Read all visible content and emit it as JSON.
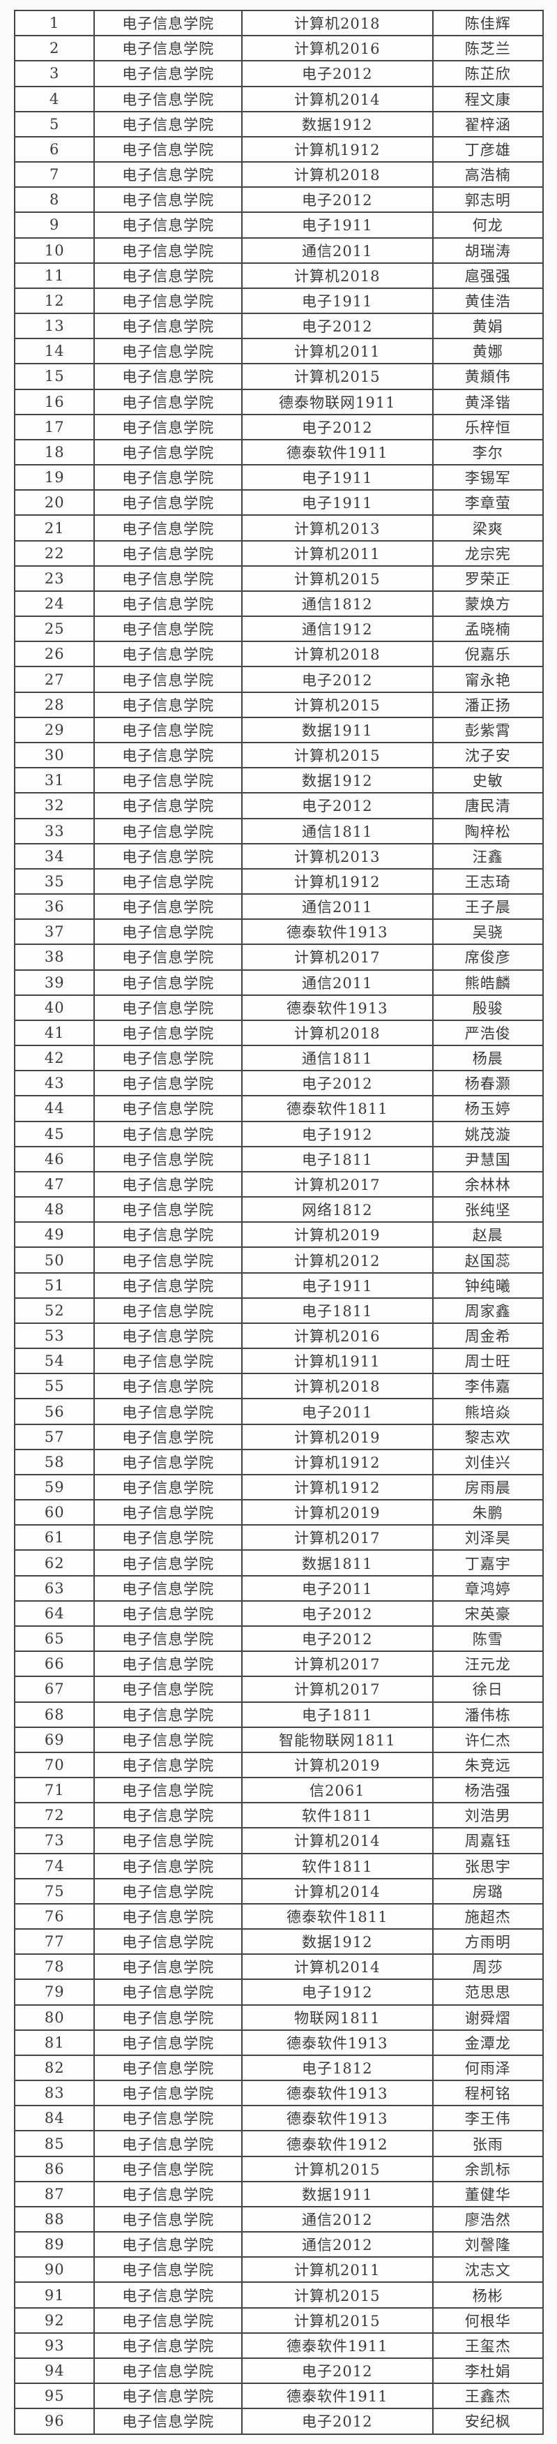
{
  "colors": {
    "border": "#454545",
    "text": "#3a3a3a",
    "background": "#fbfbfb",
    "cell_background": "#fdfdfd"
  },
  "table": {
    "rows": [
      [
        "1",
        "电子信息学院",
        "计算机2018",
        "陈佳辉"
      ],
      [
        "2",
        "电子信息学院",
        "计算机2016",
        "陈芝兰"
      ],
      [
        "3",
        "电子信息学院",
        "电子2012",
        "陈芷欣"
      ],
      [
        "4",
        "电子信息学院",
        "计算机2014",
        "程文康"
      ],
      [
        "5",
        "电子信息学院",
        "数据1912",
        "翟梓涵"
      ],
      [
        "6",
        "电子信息学院",
        "计算机1912",
        "丁彦雄"
      ],
      [
        "7",
        "电子信息学院",
        "计算机2018",
        "高浩楠"
      ],
      [
        "8",
        "电子信息学院",
        "电子2012",
        "郭志明"
      ],
      [
        "9",
        "电子信息学院",
        "电子1911",
        "何龙"
      ],
      [
        "10",
        "电子信息学院",
        "通信2011",
        "胡瑞涛"
      ],
      [
        "11",
        "电子信息学院",
        "计算机2018",
        "扈强强"
      ],
      [
        "12",
        "电子信息学院",
        "电子1911",
        "黄佳浩"
      ],
      [
        "13",
        "电子信息学院",
        "电子2012",
        "黄娟"
      ],
      [
        "14",
        "电子信息学院",
        "计算机2011",
        "黄娜"
      ],
      [
        "15",
        "电子信息学院",
        "计算机2015",
        "黄頫伟"
      ],
      [
        "16",
        "电子信息学院",
        "德泰物联网1911",
        "黄泽锴"
      ],
      [
        "17",
        "电子信息学院",
        "电子2012",
        "乐梓恒"
      ],
      [
        "18",
        "电子信息学院",
        "德泰软件1911",
        "李尔"
      ],
      [
        "19",
        "电子信息学院",
        "电子1911",
        "李锡军"
      ],
      [
        "20",
        "电子信息学院",
        "电子1911",
        "李章萤"
      ],
      [
        "21",
        "电子信息学院",
        "计算机2013",
        "梁爽"
      ],
      [
        "22",
        "电子信息学院",
        "计算机2011",
        "龙宗宪"
      ],
      [
        "23",
        "电子信息学院",
        "计算机2015",
        "罗荣正"
      ],
      [
        "24",
        "电子信息学院",
        "通信1812",
        "蒙焕方"
      ],
      [
        "25",
        "电子信息学院",
        "通信1912",
        "孟晓楠"
      ],
      [
        "26",
        "电子信息学院",
        "计算机2018",
        "倪嘉乐"
      ],
      [
        "27",
        "电子信息学院",
        "电子2012",
        "甯永艳"
      ],
      [
        "28",
        "电子信息学院",
        "计算机2015",
        "潘正扬"
      ],
      [
        "29",
        "电子信息学院",
        "数据1911",
        "彭紫霄"
      ],
      [
        "30",
        "电子信息学院",
        "计算机2015",
        "沈子安"
      ],
      [
        "31",
        "电子信息学院",
        "数据1912",
        "史敏"
      ],
      [
        "32",
        "电子信息学院",
        "电子2012",
        "唐民清"
      ],
      [
        "33",
        "电子信息学院",
        "通信1811",
        "陶梓松"
      ],
      [
        "34",
        "电子信息学院",
        "计算机2013",
        "汪鑫"
      ],
      [
        "35",
        "电子信息学院",
        "计算机1912",
        "王志琦"
      ],
      [
        "36",
        "电子信息学院",
        "通信2011",
        "王子晨"
      ],
      [
        "37",
        "电子信息学院",
        "德泰软件1913",
        "吴骁"
      ],
      [
        "38",
        "电子信息学院",
        "计算机2017",
        "席俊彦"
      ],
      [
        "39",
        "电子信息学院",
        "通信2011",
        "熊皓麟"
      ],
      [
        "40",
        "电子信息学院",
        "德泰软件1913",
        "殷骏"
      ],
      [
        "41",
        "电子信息学院",
        "计算机2018",
        "严浩俊"
      ],
      [
        "42",
        "电子信息学院",
        "通信1811",
        "杨晨"
      ],
      [
        "43",
        "电子信息学院",
        "电子2012",
        "杨春灏"
      ],
      [
        "44",
        "电子信息学院",
        "德泰软件1811",
        "杨玉婷"
      ],
      [
        "45",
        "电子信息学院",
        "电子1912",
        "姚茂漩"
      ],
      [
        "46",
        "电子信息学院",
        "电子1811",
        "尹慧国"
      ],
      [
        "47",
        "电子信息学院",
        "计算机2017",
        "余林林"
      ],
      [
        "48",
        "电子信息学院",
        "网络1812",
        "张纯坚"
      ],
      [
        "49",
        "电子信息学院",
        "计算机2019",
        "赵晨"
      ],
      [
        "50",
        "电子信息学院",
        "计算机2012",
        "赵国蕊"
      ],
      [
        "51",
        "电子信息学院",
        "电子1911",
        "钟纯曦"
      ],
      [
        "52",
        "电子信息学院",
        "电子1811",
        "周家鑫"
      ],
      [
        "53",
        "电子信息学院",
        "计算机2016",
        "周金希"
      ],
      [
        "54",
        "电子信息学院",
        "计算机1911",
        "周士旺"
      ],
      [
        "55",
        "电子信息学院",
        "计算机2018",
        "李伟嘉"
      ],
      [
        "56",
        "电子信息学院",
        "电子2011",
        "熊培焱"
      ],
      [
        "57",
        "电子信息学院",
        "计算机2019",
        "黎志欢"
      ],
      [
        "58",
        "电子信息学院",
        "计算机1912",
        "刘佳兴"
      ],
      [
        "59",
        "电子信息学院",
        "计算机1912",
        "房雨晨"
      ],
      [
        "60",
        "电子信息学院",
        "计算机2019",
        "朱鹏"
      ],
      [
        "61",
        "电子信息学院",
        "计算机2017",
        "刘泽昊"
      ],
      [
        "62",
        "电子信息学院",
        "数据1811",
        "丁嘉宇"
      ],
      [
        "63",
        "电子信息学院",
        "电子2011",
        "章鸿婷"
      ],
      [
        "64",
        "电子信息学院",
        "电子2012",
        "宋英豪"
      ],
      [
        "65",
        "电子信息学院",
        "电子2012",
        "陈雪"
      ],
      [
        "66",
        "电子信息学院",
        "计算机2017",
        "汪元龙"
      ],
      [
        "67",
        "电子信息学院",
        "计算机2017",
        "徐日"
      ],
      [
        "68",
        "电子信息学院",
        "电子1811",
        "潘伟栋"
      ],
      [
        "69",
        "电子信息学院",
        "智能物联网1811",
        "许仁杰"
      ],
      [
        "70",
        "电子信息学院",
        "计算机2019",
        "朱竞远"
      ],
      [
        "71",
        "电子信息学院",
        "信2061",
        "杨浩强"
      ],
      [
        "72",
        "电子信息学院",
        "软件1811",
        "刘浩男"
      ],
      [
        "73",
        "电子信息学院",
        "计算机2014",
        "周嘉钰"
      ],
      [
        "74",
        "电子信息学院",
        "软件1811",
        "张思宇"
      ],
      [
        "75",
        "电子信息学院",
        "计算机2014",
        "房璐"
      ],
      [
        "76",
        "电子信息学院",
        "德泰软件1811",
        "施超杰"
      ],
      [
        "77",
        "电子信息学院",
        "数据1912",
        "方雨明"
      ],
      [
        "78",
        "电子信息学院",
        "计算机2014",
        "周莎"
      ],
      [
        "79",
        "电子信息学院",
        "电子1912",
        "范思思"
      ],
      [
        "80",
        "电子信息学院",
        "物联网1811",
        "谢舜熠"
      ],
      [
        "81",
        "电子信息学院",
        "德泰软件1913",
        "金潭龙"
      ],
      [
        "82",
        "电子信息学院",
        "电子1812",
        "何雨泽"
      ],
      [
        "83",
        "电子信息学院",
        "德泰软件1913",
        "程柯铭"
      ],
      [
        "84",
        "电子信息学院",
        "德泰软件1913",
        "李王伟"
      ],
      [
        "85",
        "电子信息学院",
        "德泰软件1912",
        "张雨"
      ],
      [
        "86",
        "电子信息学院",
        "计算机2015",
        "余凯标"
      ],
      [
        "87",
        "电子信息学院",
        "数据1911",
        "董健华"
      ],
      [
        "88",
        "电子信息学院",
        "通信2012",
        "廖浩然"
      ],
      [
        "89",
        "电子信息学院",
        "通信2012",
        "刘謦隆"
      ],
      [
        "90",
        "电子信息学院",
        "计算机2011",
        "沈志文"
      ],
      [
        "91",
        "电子信息学院",
        "计算机2015",
        "杨彬"
      ],
      [
        "92",
        "电子信息学院",
        "计算机2015",
        "何根华"
      ],
      [
        "93",
        "电子信息学院",
        "德泰软件1911",
        "王玺杰"
      ],
      [
        "94",
        "电子信息学院",
        "电子2012",
        "李杜娟"
      ],
      [
        "95",
        "电子信息学院",
        "德泰软件1911",
        "王鑫杰"
      ],
      [
        "96",
        "电子信息学院",
        "电子2012",
        "安纪枫"
      ]
    ]
  }
}
